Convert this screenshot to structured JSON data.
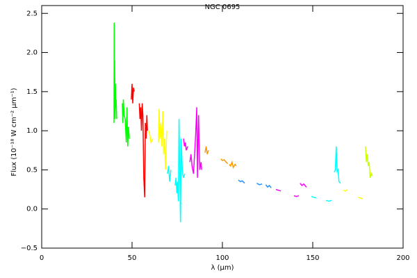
{
  "chart_data": {
    "type": "line",
    "title": "NGC 0695",
    "xlabel": "λ (μm)",
    "ylabel": "Flux (10⁻¹⁸ W cm⁻² μm⁻¹)",
    "xlim": [
      0,
      200
    ],
    "xticks": [
      0,
      50,
      100,
      150,
      200
    ],
    "ylim": [
      -0.5,
      2.6
    ],
    "yticks": [
      {
        "value": -0.5,
        "label": "−0.5"
      },
      {
        "value": 0,
        "label": "0.0"
      },
      0.5,
      {
        "value": 1,
        "label": "1.0"
      },
      1.5,
      {
        "value": 2,
        "label": "2.0"
      },
      2.5
    ],
    "series": [
      {
        "color": "#00ff00",
        "x": [
          40.0,
          40.1,
          40.2,
          40.4,
          40.6,
          40.8,
          41.0,
          41.2,
          41.5
        ],
        "values": [
          1.1,
          2.38,
          1.2,
          1.9,
          1.15,
          1.6,
          1.3,
          1.4,
          1.15
        ]
      },
      {
        "color": "#00ff00",
        "x": [
          44.6,
          44.9,
          45.2,
          45.6,
          46.2,
          46.8,
          47.2,
          47.6,
          48.0,
          48.5
        ],
        "values": [
          1.35,
          1.1,
          1.4,
          1.2,
          1.15,
          0.85,
          1.3,
          0.8,
          1.05,
          0.9
        ]
      },
      {
        "color": "#ff0000",
        "x": [
          49.6,
          50.0,
          50.4,
          50.8,
          51.2
        ],
        "values": [
          1.4,
          1.6,
          1.35,
          1.55,
          1.5
        ]
      },
      {
        "color": "#ff0000",
        "x": [
          54.0,
          54.4,
          54.8,
          55.2,
          55.6,
          56.0,
          56.5,
          57.0,
          57.4,
          57.8,
          58.2,
          58.5
        ],
        "values": [
          1.35,
          1.15,
          1.3,
          1.0,
          1.35,
          1.2,
          0.4,
          0.15,
          1.1,
          0.9,
          1.2,
          1.0
        ]
      },
      {
        "color": "#ffff00",
        "x": [
          59.2,
          59.8,
          60.5,
          61.5
        ],
        "values": [
          1.0,
          0.95,
          0.85,
          0.9
        ]
      },
      {
        "color": "#ffff00",
        "x": [
          64.6,
          65.0,
          65.4,
          66.0,
          66.5,
          67.0,
          67.5,
          68.0,
          68.5,
          69.2
        ],
        "values": [
          0.85,
          1.28,
          0.9,
          1.1,
          0.8,
          1.25,
          0.7,
          0.9,
          0.5,
          1.0
        ]
      },
      {
        "color": "#00ffff",
        "x": [
          69.6,
          70.2,
          70.8,
          71.5
        ],
        "values": [
          0.45,
          0.55,
          0.35,
          0.5
        ]
      },
      {
        "color": "#00ffff",
        "x": [
          73.8,
          74.3,
          74.8,
          75.2,
          75.6,
          76.0,
          76.4,
          76.8,
          77.2,
          77.8,
          78.4,
          79.2
        ],
        "values": [
          0.3,
          0.4,
          0.2,
          0.35,
          0.1,
          1.15,
          0.5,
          -0.17,
          0.9,
          0.5,
          0.4,
          0.45
        ]
      },
      {
        "color": "#ff00ff",
        "x": [
          78.5,
          79.0,
          79.5,
          80.0,
          80.8
        ],
        "values": [
          0.9,
          0.8,
          0.85,
          0.75,
          0.8
        ]
      },
      {
        "color": "#ff00ff",
        "x": [
          82.0,
          82.6,
          83.2,
          84.0,
          84.6,
          85.2,
          85.8,
          86.2,
          86.8,
          87.5,
          88.2,
          88.5
        ],
        "values": [
          0.6,
          0.7,
          0.55,
          0.45,
          0.7,
          0.95,
          1.3,
          0.4,
          1.2,
          0.5,
          0.6,
          0.5
        ]
      },
      {
        "color": "#ff9900",
        "x": [
          90.4,
          91.0,
          91.6,
          92.3
        ],
        "values": [
          0.72,
          0.8,
          0.7,
          0.75
        ]
      },
      {
        "color": "#ff9900",
        "x": [
          99.2,
          100.0,
          101.0,
          102.0,
          103.0
        ],
        "values": [
          0.64,
          0.62,
          0.63,
          0.6,
          0.58
        ]
      },
      {
        "color": "#ff9900",
        "x": [
          103.8,
          104.5,
          105.3,
          106.0,
          107.0,
          107.7
        ],
        "values": [
          0.57,
          0.55,
          0.6,
          0.53,
          0.57,
          0.55
        ]
      },
      {
        "color": "#1e90ff",
        "x": [
          108.8,
          110.0,
          111.0,
          112.3
        ],
        "values": [
          0.37,
          0.35,
          0.36,
          0.33
        ]
      },
      {
        "color": "#1e90ff",
        "x": [
          119.0,
          120.5,
          122.0
        ],
        "values": [
          0.33,
          0.31,
          0.32
        ]
      },
      {
        "color": "#1e90ff",
        "x": [
          124.0,
          125.0,
          126.0,
          127.0
        ],
        "values": [
          0.31,
          0.28,
          0.3,
          0.27
        ]
      },
      {
        "color": "#ff00ff",
        "x": [
          129.6,
          131.0,
          132.3
        ],
        "values": [
          0.25,
          0.24,
          0.23
        ]
      },
      {
        "color": "#ff00ff",
        "x": [
          139.6,
          141.0,
          142.3
        ],
        "values": [
          0.17,
          0.16,
          0.17
        ]
      },
      {
        "color": "#ff00ff",
        "x": [
          143.0,
          144.0,
          145.0,
          146.5
        ],
        "values": [
          0.33,
          0.3,
          0.32,
          0.28
        ]
      },
      {
        "color": "#00ffff",
        "x": [
          149.2,
          150.5,
          152.0
        ],
        "values": [
          0.16,
          0.15,
          0.14
        ]
      },
      {
        "color": "#00ffff",
        "x": [
          157.3,
          159.0,
          160.4
        ],
        "values": [
          0.11,
          0.1,
          0.11
        ]
      },
      {
        "color": "#00ffff",
        "x": [
          161.9,
          162.5,
          163.0,
          163.5,
          164.0,
          164.5,
          165.4
        ],
        "values": [
          0.47,
          0.5,
          0.8,
          0.48,
          0.5,
          0.35,
          0.33
        ]
      },
      {
        "color": "#ffff00",
        "x": [
          167.0,
          168.0,
          169.2
        ],
        "values": [
          0.24,
          0.23,
          0.25
        ]
      },
      {
        "color": "#ffff00",
        "x": [
          175.0,
          176.3,
          177.7
        ],
        "values": [
          0.15,
          0.14,
          0.13
        ]
      },
      {
        "color": "#ccff00",
        "x": [
          179.2,
          179.7,
          180.2,
          180.7,
          181.2,
          181.8,
          182.5,
          183.0
        ],
        "values": [
          0.8,
          0.6,
          0.7,
          0.55,
          0.6,
          0.4,
          0.45,
          0.42
        ]
      }
    ]
  }
}
